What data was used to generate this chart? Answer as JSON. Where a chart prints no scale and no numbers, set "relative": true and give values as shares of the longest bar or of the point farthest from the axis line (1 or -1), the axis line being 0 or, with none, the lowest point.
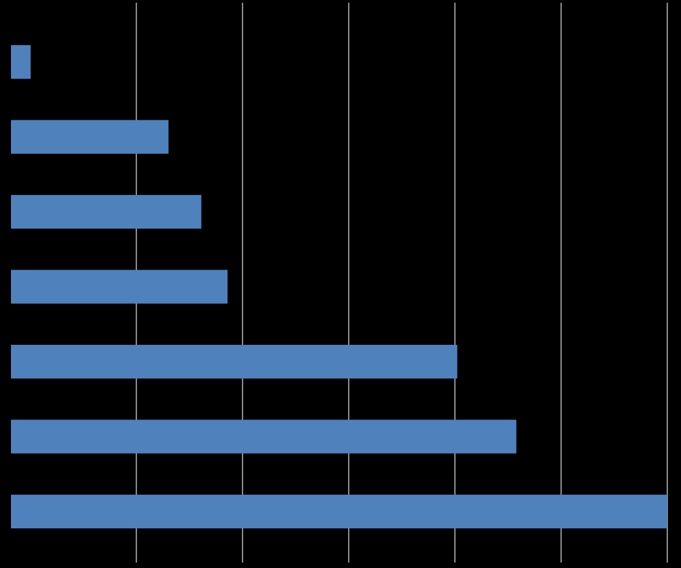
{
  "chart_data": {
    "type": "bar",
    "orientation": "horizontal",
    "relative": true,
    "categories": [
      null,
      null,
      null,
      null,
      null,
      null,
      null
    ],
    "values": [
      0.03,
      0.24,
      0.29,
      0.33,
      0.68,
      0.77,
      1
    ],
    "color": "#4f81bd",
    "grid": true
  }
}
